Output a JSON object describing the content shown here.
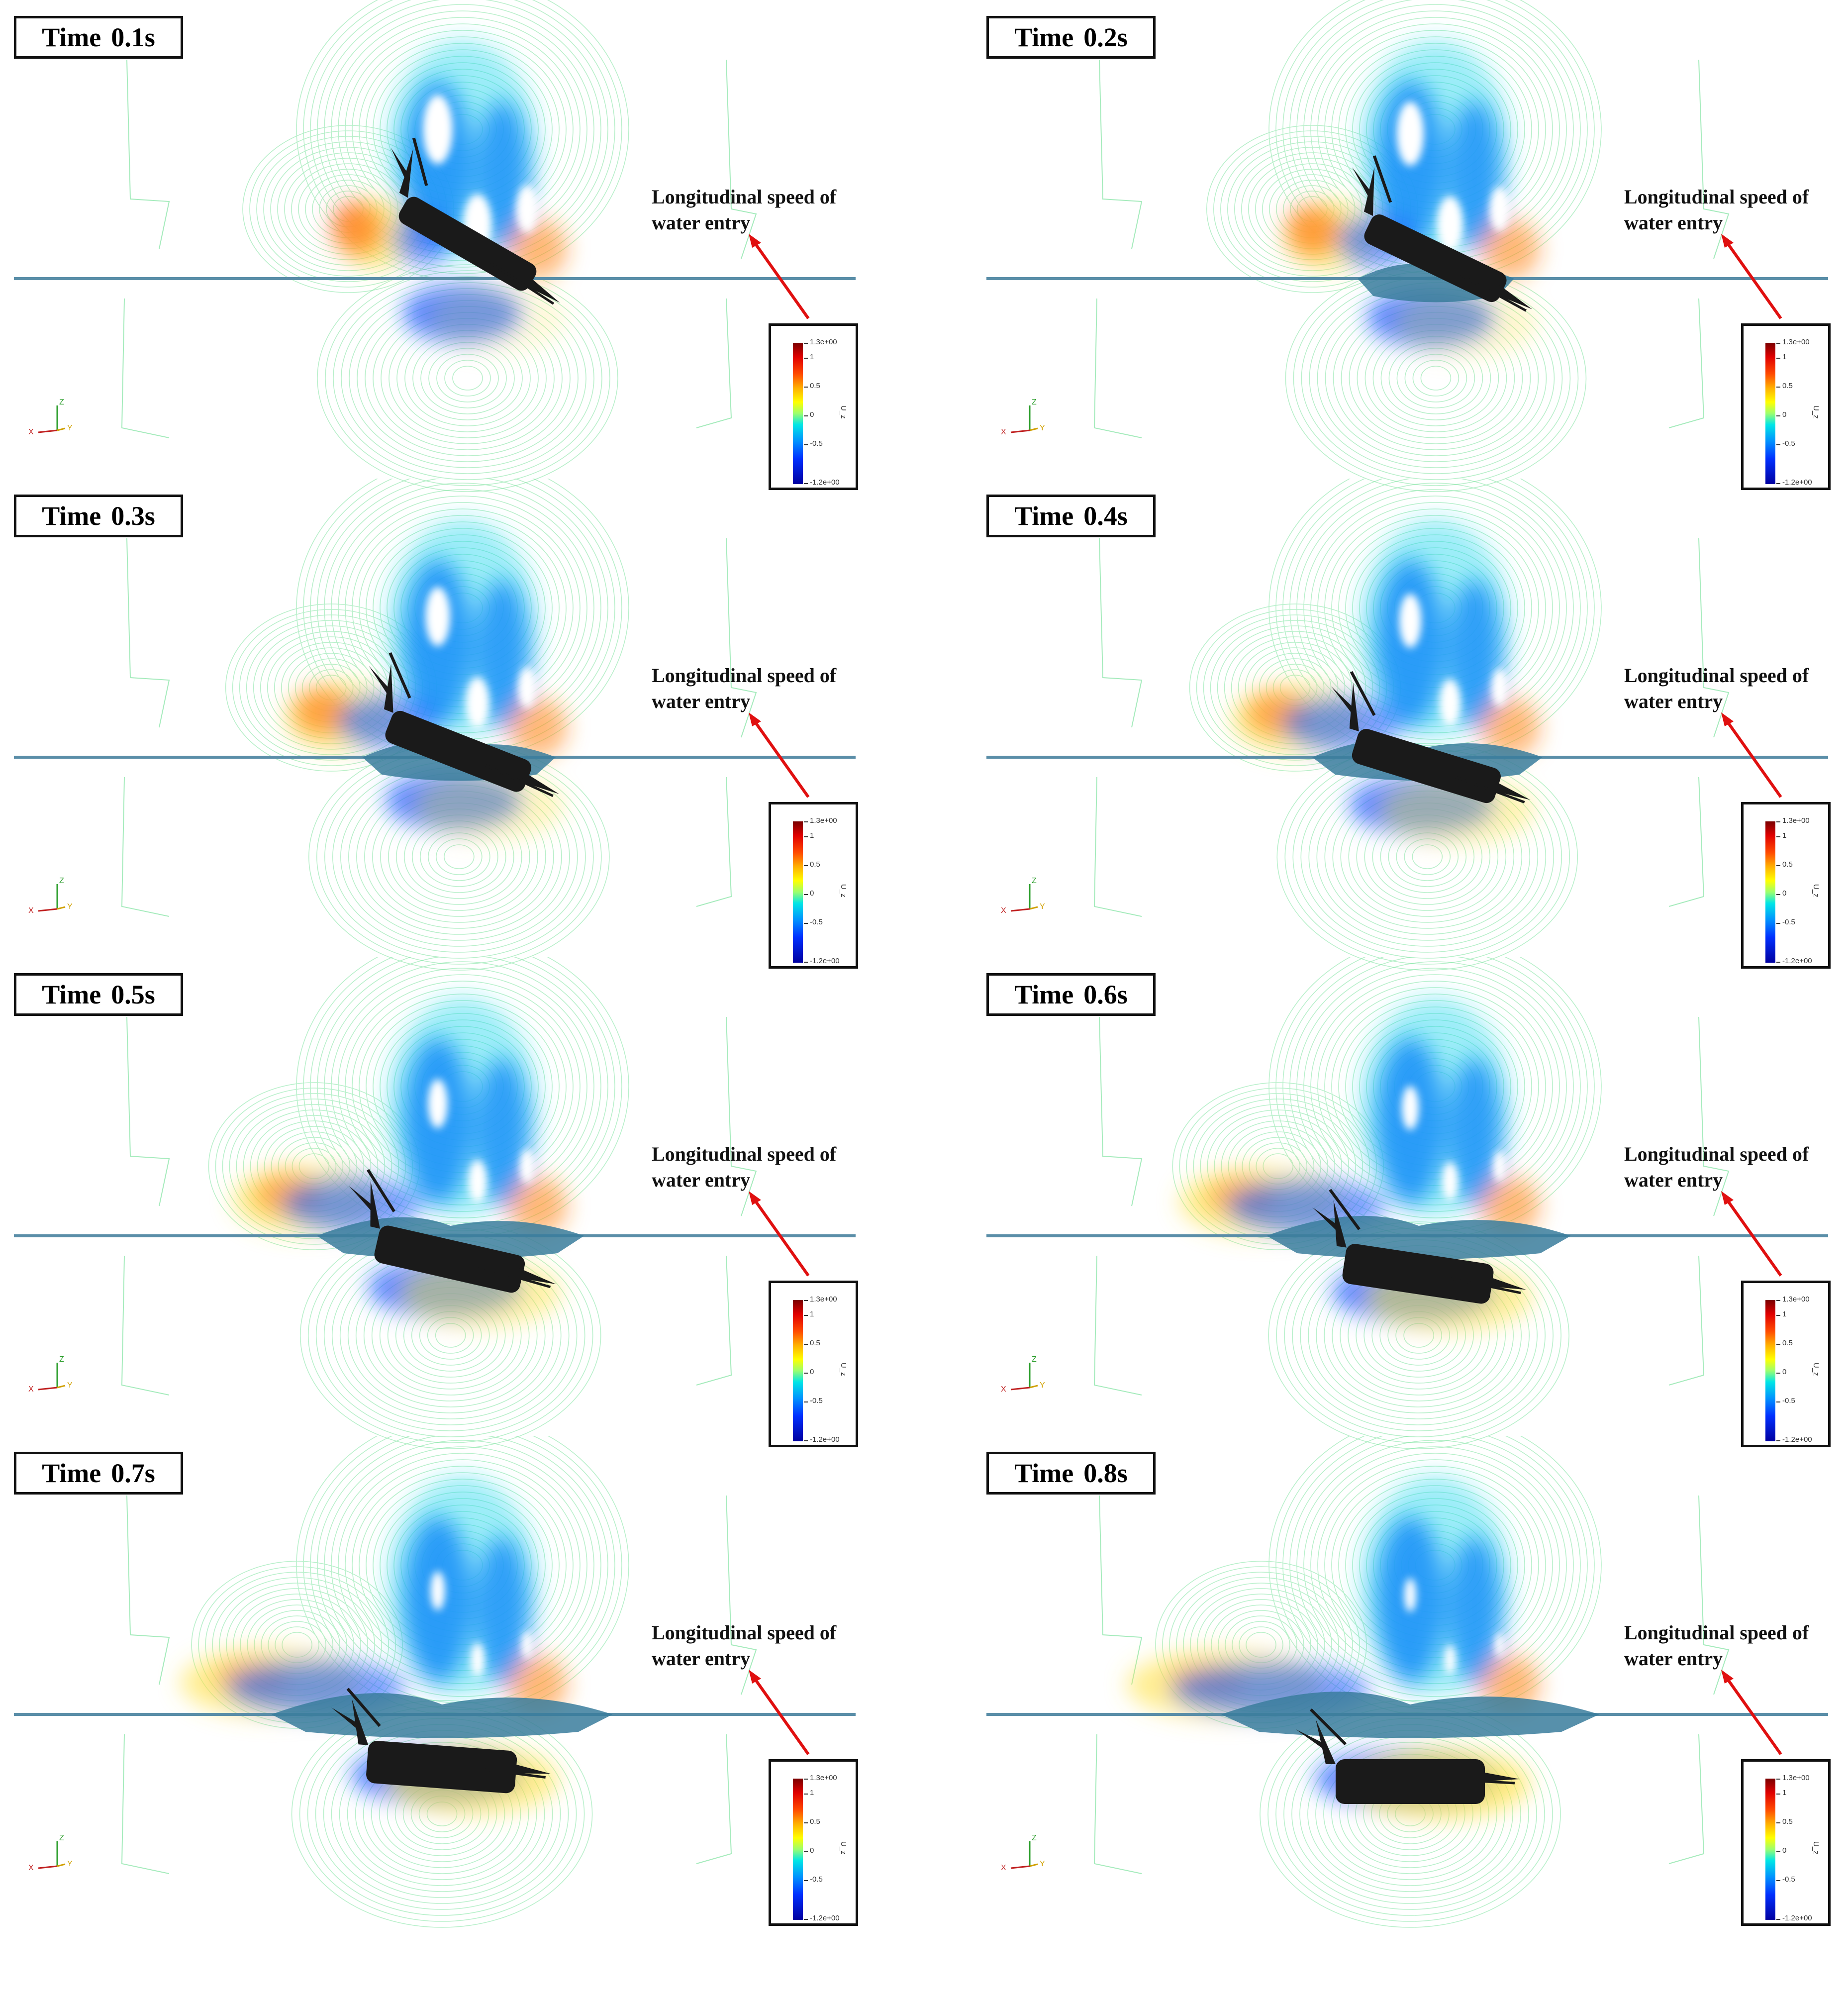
{
  "panels": [
    {
      "label": "Time",
      "value": "0.1s"
    },
    {
      "label": "Time",
      "value": "0.2s"
    },
    {
      "label": "Time",
      "value": "0.3s"
    },
    {
      "label": "Time",
      "value": "0.4s"
    },
    {
      "label": "Time",
      "value": "0.5s"
    },
    {
      "label": "Time",
      "value": "0.6s"
    },
    {
      "label": "Time",
      "value": "0.7s"
    },
    {
      "label": "Time",
      "value": "0.8s"
    }
  ],
  "annotation": {
    "line1": "Longitudinal speed of",
    "line2": "water entry"
  },
  "legend": {
    "variable": "U_z",
    "max_label": "1.3e+00",
    "min_label": "-1.2e+00",
    "ticks": [
      "1",
      "0.5",
      "0",
      "-0.5"
    ],
    "colors": [
      "#7a0000",
      "#e00000",
      "#ffb000",
      "#ffff00",
      "#00e6e6",
      "#0090ff",
      "#0000a0"
    ]
  },
  "axes_triad": {
    "x": "X",
    "y": "Y",
    "z": "Z"
  },
  "colors": {
    "contour": "#7fe3a0",
    "water_surface": "#5a8ea8",
    "arrow": "#e01010",
    "body": "#1a1a1a",
    "hull_overlay": "#3a7c9c"
  }
}
